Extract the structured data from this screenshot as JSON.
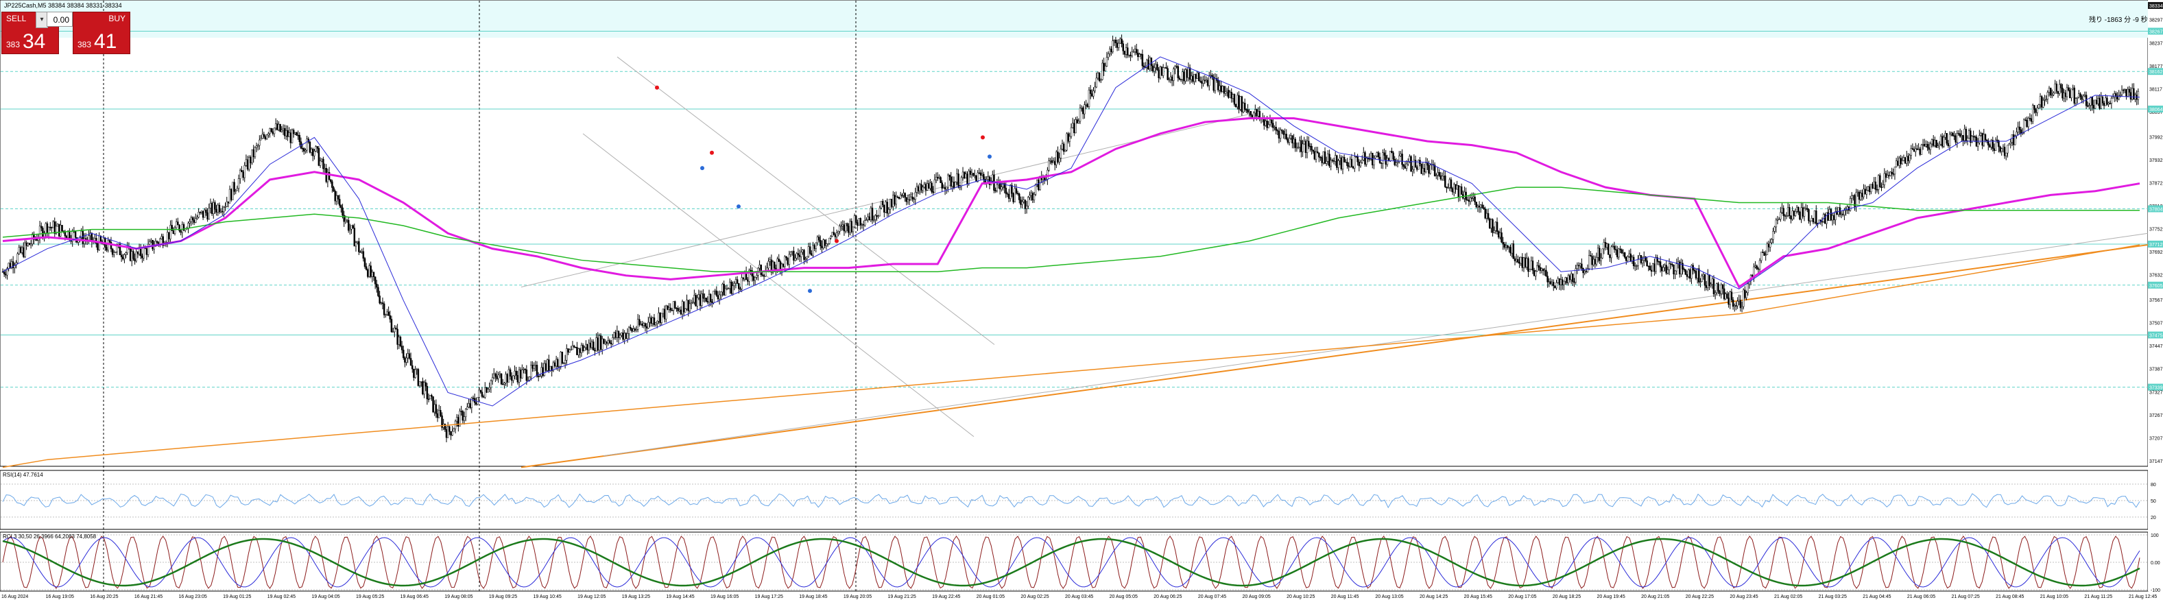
{
  "header": {
    "symbol_info": "JP225Cash,M5 38384 38384 38331 38334",
    "top_right_note": "残り -1863 分 -9 秒"
  },
  "trade_panel": {
    "sell_label": "SELL",
    "buy_label": "BUY",
    "lot_value": "0.00",
    "sell_price_small": "383",
    "sell_price_big": "34",
    "buy_price_small": "383",
    "buy_price_big": "41",
    "sell_color": "#c8161d",
    "buy_color": "#c8161d"
  },
  "price_axis": {
    "labels": [
      "38334",
      "38297",
      "38237",
      "38177",
      "38117",
      "38057",
      "37992",
      "37932",
      "37872",
      "37812",
      "37752",
      "37692",
      "37632",
      "37567",
      "37507",
      "37447",
      "37387",
      "37327",
      "37267",
      "37207",
      "37147"
    ],
    "highlights": [
      {
        "value": "38334",
        "price": 38334,
        "color": "#1a1a1a"
      },
      {
        "value": "38267",
        "price": 38267,
        "color": "#5fd3c8"
      },
      {
        "value": "38162",
        "price": 38162,
        "color": "#5fd3c8"
      },
      {
        "value": "38064",
        "price": 38064,
        "color": "#5fd3c8"
      },
      {
        "value": "37804",
        "price": 37804,
        "color": "#5fd3c8"
      },
      {
        "value": "37712",
        "price": 37712,
        "color": "#5fd3c8"
      },
      {
        "value": "37605",
        "price": 37605,
        "color": "#5fd3c8"
      },
      {
        "value": "37475",
        "price": 37475,
        "color": "#5fd3c8"
      },
      {
        "value": "37339",
        "price": 37339,
        "color": "#5fd3c8"
      }
    ]
  },
  "rsi_panel": {
    "label": "RSI(14) 47.7614",
    "levels": [
      "80",
      "50",
      "20"
    ],
    "value": 47.7614
  },
  "stoch_panel": {
    "label": "RCI  3 30,50 26,3966 64,2083 74,8058",
    "levels": [
      "100",
      "0.00",
      "-100"
    ]
  },
  "time_axis": {
    "labels": [
      "16 Aug 2024",
      "16 Aug 19:05",
      "16 Aug 20:25",
      "16 Aug 21:45",
      "16 Aug 23:05",
      "19 Aug 01:25",
      "19 Aug 02:45",
      "19 Aug 04:05",
      "19 Aug 05:25",
      "19 Aug 06:45",
      "19 Aug 08:05",
      "19 Aug 09:25",
      "19 Aug 10:45",
      "19 Aug 12:05",
      "19 Aug 13:25",
      "19 Aug 14:45",
      "19 Aug 16:05",
      "19 Aug 17:25",
      "19 Aug 18:45",
      "19 Aug 20:05",
      "19 Aug 21:25",
      "19 Aug 22:45",
      "20 Aug 01:05",
      "20 Aug 02:25",
      "20 Aug 03:45",
      "20 Aug 05:05",
      "20 Aug 06:25",
      "20 Aug 07:45",
      "20 Aug 09:05",
      "20 Aug 10:25",
      "20 Aug 11:45",
      "20 Aug 13:05",
      "20 Aug 14:25",
      "20 Aug 15:45",
      "20 Aug 17:05",
      "20 Aug 18:25",
      "20 Aug 19:45",
      "20 Aug 21:05",
      "20 Aug 22:25",
      "20 Aug 23:45",
      "21 Aug 02:05",
      "21 Aug 03:25",
      "21 Aug 04:45",
      "21 Aug 06:05",
      "21 Aug 07:25",
      "21 Aug 08:45",
      "21 Aug 10:05",
      "21 Aug 11:25",
      "21 Aug 12:45"
    ]
  },
  "chart_data": {
    "type": "line",
    "title": "JP225Cash,M5 38384 38384 38331 38334",
    "ylim": [
      37147,
      38334
    ],
    "x": [
      "16 Aug 2024",
      "16 Aug 19:05",
      "16 Aug 20:25",
      "16 Aug 21:45",
      "16 Aug 23:05",
      "19 Aug 01:25",
      "19 Aug 02:45",
      "19 Aug 04:05",
      "19 Aug 05:25",
      "19 Aug 06:45",
      "19 Aug 08:05",
      "19 Aug 09:25",
      "19 Aug 10:45",
      "19 Aug 12:05",
      "19 Aug 13:25",
      "19 Aug 14:45",
      "19 Aug 16:05",
      "19 Aug 17:25",
      "19 Aug 18:45",
      "19 Aug 20:05",
      "19 Aug 21:25",
      "19 Aug 22:45",
      "20 Aug 01:05",
      "20 Aug 02:25",
      "20 Aug 03:45",
      "20 Aug 05:05",
      "20 Aug 06:25",
      "20 Aug 07:45",
      "20 Aug 09:05",
      "20 Aug 10:25",
      "20 Aug 11:45",
      "20 Aug 13:05",
      "20 Aug 14:25",
      "20 Aug 15:45",
      "20 Aug 17:05",
      "20 Aug 18:25",
      "20 Aug 19:45",
      "20 Aug 21:05",
      "20 Aug 22:25",
      "20 Aug 23:45",
      "21 Aug 02:05",
      "21 Aug 03:25",
      "21 Aug 04:45",
      "21 Aug 06:05",
      "21 Aug 07:25",
      "21 Aug 08:45",
      "21 Aug 10:05",
      "21 Aug 11:25",
      "21 Aug 12:45"
    ],
    "series": [
      {
        "values": [
          37640,
          37760,
          37720,
          37680,
          37760,
          37820,
          38020,
          37960,
          37700,
          37430,
          37220,
          37360,
          37380,
          37440,
          37480,
          37540,
          37580,
          37640,
          37690,
          37760,
          37820,
          37870,
          37890,
          37820,
          38000,
          38240,
          38160,
          38150,
          38060,
          37980,
          37920,
          37940,
          37910,
          37830,
          37680,
          37600,
          37700,
          37660,
          37640,
          37550,
          37800,
          37780,
          37860,
          37960,
          38000,
          37960,
          38120,
          38080,
          38110
        ],
        "color": "#000000"
      },
      {
        "values": [
          37720,
          37730,
          37720,
          37700,
          37720,
          37780,
          37880,
          37900,
          37880,
          37820,
          37740,
          37700,
          37680,
          37650,
          37630,
          37620,
          37630,
          37640,
          37650,
          37650,
          37660,
          37660,
          37870,
          37880,
          37900,
          37960,
          38000,
          38030,
          38040,
          38040,
          38020,
          38000,
          37980,
          37970,
          37950,
          37900,
          37860,
          37840,
          37830,
          37600,
          37680,
          37700,
          37740,
          37780,
          37800,
          37820,
          37840,
          37850,
          37870
        ],
        "color": "#e01be0"
      },
      {
        "values": [
          37730,
          37740,
          37750,
          37750,
          37750,
          37770,
          37780,
          37790,
          37780,
          37760,
          37730,
          37710,
          37690,
          37670,
          37660,
          37650,
          37640,
          37640,
          37640,
          37640,
          37640,
          37640,
          37650,
          37650,
          37660,
          37670,
          37680,
          37700,
          37720,
          37750,
          37780,
          37800,
          37820,
          37840,
          37860,
          37860,
          37850,
          37840,
          37830,
          37820,
          37820,
          37820,
          37810,
          37800,
          37800,
          37800,
          37800,
          37800,
          37800
        ],
        "color": "#22b822"
      },
      {
        "values": [
          37130,
          37150,
          37160,
          37170,
          37180,
          37190,
          37200,
          37210,
          37220,
          37230,
          37240,
          37250,
          37260,
          37270,
          37280,
          37290,
          37300,
          37310,
          37320,
          37330,
          37340,
          37350,
          37360,
          37370,
          37380,
          37390,
          37400,
          37410,
          37420,
          37430,
          37440,
          37450,
          37460,
          37470,
          37480,
          37490,
          37500,
          37510,
          37520,
          37530,
          37550,
          37570,
          37590,
          37610,
          37630,
          37650,
          37670,
          37690,
          37710
        ],
        "color": "#f08c1e"
      }
    ],
    "rsi_value": 47.7614
  }
}
